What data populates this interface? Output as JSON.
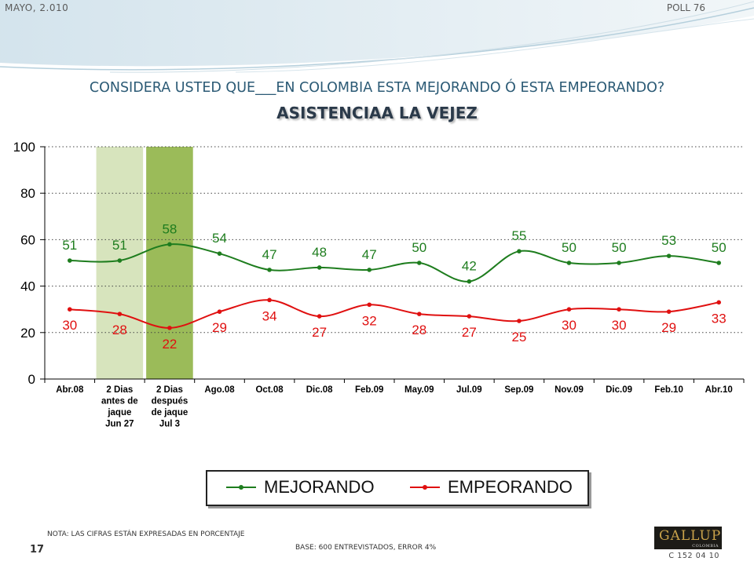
{
  "header": {
    "date": "MAYO, 2.010",
    "poll": "POLL 76"
  },
  "question": "CONSIDERA USTED QUE___EN COLOMBIA ESTA MEJORANDO Ó ESTA EMPEORANDO?",
  "topic": "ASISTENCIAA LA VEJEZ",
  "colors": {
    "mejorando": "#1e7d1e",
    "empeorando": "#e01010",
    "band_light": "#d7e4bd",
    "band_dark": "#9bbb59",
    "title": "#2b5a75"
  },
  "chart_data": {
    "type": "line",
    "title": "",
    "xlabel": "",
    "ylabel": "",
    "ylim": [
      0,
      100
    ],
    "yticks": [
      "0",
      "20",
      "40",
      "60",
      "80",
      "100"
    ],
    "grid": true,
    "legend_position": "bottom",
    "categories": [
      [
        "Abr.08"
      ],
      [
        "2 Dias",
        "antes de",
        "jaque",
        "Jun 27"
      ],
      [
        "2 Dias",
        "después",
        "de jaque",
        "Jul 3"
      ],
      [
        "Ago.08"
      ],
      [
        "Oct.08"
      ],
      [
        "Dic.08"
      ],
      [
        "Feb.09"
      ],
      [
        "May.09"
      ],
      [
        "Jul.09"
      ],
      [
        "Sep.09"
      ],
      [
        "Nov.09"
      ],
      [
        "Dic.09"
      ],
      [
        "Feb.10"
      ],
      [
        "Abr.10"
      ]
    ],
    "highlighted_categories": [
      1,
      2
    ],
    "series": [
      {
        "name": "MEJORANDO",
        "color": "#1e7d1e",
        "values": [
          51,
          51,
          58,
          54,
          47,
          48,
          47,
          50,
          42,
          55,
          50,
          50,
          53,
          50
        ]
      },
      {
        "name": "EMPEORANDO",
        "color": "#e01010",
        "values": [
          30,
          28,
          22,
          29,
          34,
          27,
          32,
          28,
          27,
          25,
          30,
          30,
          29,
          33
        ]
      }
    ]
  },
  "footer": {
    "note": "NOTA: LAS CIFRAS ESTÁN EXPRESADAS EN PORCENTAJE",
    "base": "BASE: 600 ENTREVISTADOS, ERROR 4%",
    "page": "17",
    "code": "C 152 04 10",
    "logo_text": "GALLUP",
    "logo_sub": "COLOMBIA"
  }
}
